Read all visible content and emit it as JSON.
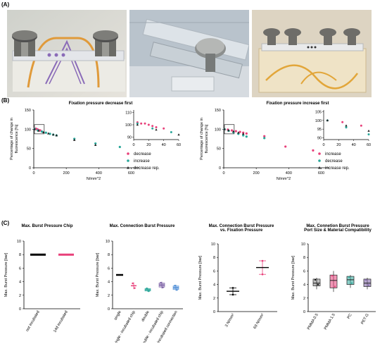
{
  "panels": {
    "a": "(A)",
    "b": "(B)",
    "c": "(C)"
  },
  "colors": {
    "increase": "#e8407a",
    "decrease": "#2aa79a",
    "decrease_rep": "#222222",
    "black": "#000000",
    "pink": "#e8407a",
    "purple": "#7a5fa3",
    "teal": "#2aa79a",
    "blue": "#4f8fd6",
    "yellow": "#e8c44a"
  },
  "photos": [
    "chip-clamp-photo",
    "clamp-closeup-photo",
    "multi-chip-photo"
  ],
  "b_left": {
    "title": "Fixation pressure decrease first",
    "ylabel": "Percentage of change in\nfluorescence [%]",
    "xlabel": "N/mm^2",
    "yticks": [
      "150",
      "100",
      "50",
      "0"
    ],
    "xticks": [
      "0",
      "200",
      "400",
      "600"
    ],
    "inset_yticks": [
      "110",
      "100",
      "90"
    ],
    "inset_xticks": [
      "0",
      "20",
      "40",
      "60"
    ],
    "legend": [
      "decrease",
      "increase",
      "decrease rep."
    ]
  },
  "b_right": {
    "title": "Fixation pressure increase first",
    "ylabel": "Percentage of change in\nfluorescence [%]",
    "xlabel": "N/mm^2",
    "yticks": [
      "150",
      "100",
      "50",
      "0"
    ],
    "xticks": [
      "0",
      "200",
      "400",
      "600"
    ],
    "inset_yticks": [
      "105",
      "100",
      "95",
      "90"
    ],
    "inset_xticks": [
      "0",
      "20",
      "40",
      "60"
    ],
    "legend": [
      "increase",
      "decrease",
      "increase rep."
    ]
  },
  "c1": {
    "title": "Max. Burst Pressure Chip",
    "ylabel": "Max. Burst Pressure [bar]",
    "yticks": [
      "10",
      "8",
      "6",
      "4",
      "2",
      "0"
    ],
    "categories": [
      "not incubated",
      "14d incubated"
    ]
  },
  "c2": {
    "title": "Max. Connection Burst Pressure",
    "ylabel": "Max. Burst Pressure [bar]",
    "yticks": [
      "10",
      "8",
      "6",
      "4",
      "2",
      "0"
    ],
    "categories": [
      "single",
      "single - incubated chip",
      "double",
      "double - incubated chip",
      "double - incubated connection"
    ]
  },
  "c3": {
    "title": "Max. Connection Burst Pressure\nvs. Fixation Pressure",
    "ylabel": "Max. Burst Pressure [bar]",
    "yticks": [
      "10",
      "8",
      "6",
      "4",
      "2",
      "0"
    ],
    "categories": [
      "3 N/mm²",
      "69 N/mm²"
    ]
  },
  "c4": {
    "title": "Max. Connetion Burst Pressure\nPort Size & Material Compatibility",
    "ylabel": "Max. Burst Pressure [bar]",
    "yticks": [
      "10",
      "8",
      "6",
      "4",
      "2",
      "0"
    ],
    "categories": [
      "PMMA 0.5",
      "PMMA 1.5",
      "PC",
      "PET-G"
    ]
  },
  "chart_data": [
    {
      "type": "scatter",
      "title": "Fixation pressure decrease first",
      "xlabel": "N/mm^2",
      "ylabel": "Percentage of change in fluorescence [%]",
      "xlim": [
        0,
        650
      ],
      "ylim": [
        0,
        150
      ],
      "series": [
        {
          "name": "decrease",
          "x": [
            5,
            10,
            15,
            20,
            25,
            30,
            40
          ],
          "y": [
            102,
            101,
            101,
            100,
            99,
            98,
            97
          ]
        },
        {
          "name": "increase",
          "x": [
            5,
            25,
            50,
            75,
            100,
            120,
            140,
            250,
            380,
            530
          ],
          "y": [
            101,
            97,
            94,
            91,
            88,
            86,
            84,
            75,
            63,
            54
          ]
        },
        {
          "name": "decrease rep.",
          "x": [
            5,
            30,
            60,
            90,
            120,
            140,
            250,
            380
          ],
          "y": [
            100,
            96,
            92,
            89,
            86,
            84,
            72,
            59
          ]
        }
      ]
    },
    {
      "type": "scatter",
      "title": "Fixation pressure increase first",
      "xlabel": "N/mm^2",
      "ylabel": "Percentage of change in fluorescence [%]",
      "xlim": [
        0,
        650
      ],
      "ylim": [
        0,
        150
      ],
      "series": [
        {
          "name": "increase",
          "x": [
            5,
            25,
            50,
            75,
            100,
            120,
            140,
            250,
            380,
            550
          ],
          "y": [
            100,
            99,
            97,
            95,
            93,
            91,
            89,
            82,
            55,
            45
          ]
        },
        {
          "name": "decrease",
          "x": [
            5,
            30,
            60,
            90,
            120,
            140,
            250
          ],
          "y": [
            100,
            96,
            92,
            88,
            84,
            81,
            77
          ]
        },
        {
          "name": "increase rep.",
          "x": [
            5,
            30,
            60,
            90,
            120
          ],
          "y": [
            100,
            97,
            94,
            91,
            88
          ]
        }
      ]
    },
    {
      "type": "scatter",
      "title": "Max. Burst Pressure Chip",
      "ylabel": "Max. Burst Pressure [bar]",
      "ylim": [
        0,
        10
      ],
      "categories": [
        "not incubated",
        "14d incubated"
      ],
      "values": [
        8,
        8
      ]
    },
    {
      "type": "scatter",
      "title": "Max. Connection Burst Pressure",
      "ylabel": "Max. Burst Pressure [bar]",
      "ylim": [
        0,
        10
      ],
      "categories": [
        "single",
        "single - incubated chip",
        "double",
        "double - incubated chip",
        "double - incubated connection"
      ],
      "values": [
        5.0,
        3.4,
        2.8,
        3.5,
        3.1
      ]
    },
    {
      "type": "scatter",
      "title": "Max. Connection Burst Pressure vs. Fixation Pressure",
      "ylabel": "Max. Burst Pressure [bar]",
      "ylim": [
        0,
        10
      ],
      "categories": [
        "3 N/mm²",
        "69 N/mm²"
      ],
      "values": [
        3.0,
        6.5
      ]
    },
    {
      "type": "scatter",
      "title": "Max. Connetion Burst Pressure Port Size & Material Compatibility",
      "ylabel": "Max. Burst Pressure [bar]",
      "ylim": [
        0,
        10
      ],
      "categories": [
        "PMMA 0.5",
        "PMMA 1.5",
        "PC",
        "PET-G"
      ],
      "values": [
        4.2,
        4.6,
        4.7,
        4.2
      ]
    }
  ]
}
